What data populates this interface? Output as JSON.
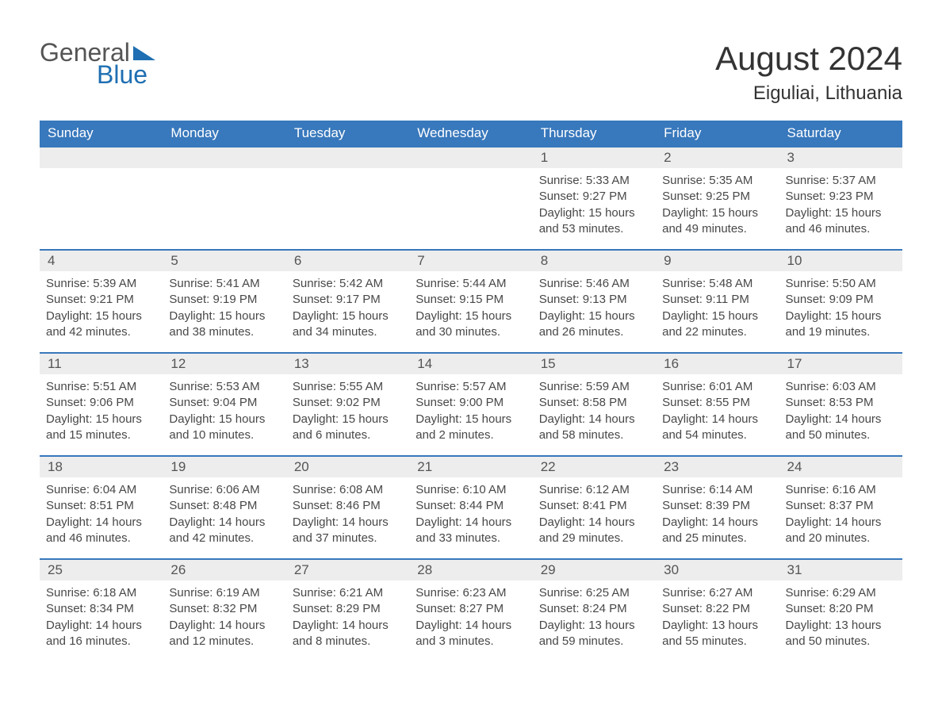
{
  "logo": {
    "word1": "General",
    "word2": "Blue"
  },
  "title": "August 2024",
  "location": "Eiguliai, Lithuania",
  "colors": {
    "header_bg": "#3878bc",
    "header_text": "#ffffff",
    "daynum_bg": "#ededed",
    "border": "#3878bc",
    "body_text": "#484848",
    "logo_accent": "#1f6fb2"
  },
  "weekdays": [
    "Sunday",
    "Monday",
    "Tuesday",
    "Wednesday",
    "Thursday",
    "Friday",
    "Saturday"
  ],
  "first_weekday_index": 4,
  "days": [
    {
      "n": 1,
      "sunrise": "5:33 AM",
      "sunset": "9:27 PM",
      "daylight": "15 hours and 53 minutes."
    },
    {
      "n": 2,
      "sunrise": "5:35 AM",
      "sunset": "9:25 PM",
      "daylight": "15 hours and 49 minutes."
    },
    {
      "n": 3,
      "sunrise": "5:37 AM",
      "sunset": "9:23 PM",
      "daylight": "15 hours and 46 minutes."
    },
    {
      "n": 4,
      "sunrise": "5:39 AM",
      "sunset": "9:21 PM",
      "daylight": "15 hours and 42 minutes."
    },
    {
      "n": 5,
      "sunrise": "5:41 AM",
      "sunset": "9:19 PM",
      "daylight": "15 hours and 38 minutes."
    },
    {
      "n": 6,
      "sunrise": "5:42 AM",
      "sunset": "9:17 PM",
      "daylight": "15 hours and 34 minutes."
    },
    {
      "n": 7,
      "sunrise": "5:44 AM",
      "sunset": "9:15 PM",
      "daylight": "15 hours and 30 minutes."
    },
    {
      "n": 8,
      "sunrise": "5:46 AM",
      "sunset": "9:13 PM",
      "daylight": "15 hours and 26 minutes."
    },
    {
      "n": 9,
      "sunrise": "5:48 AM",
      "sunset": "9:11 PM",
      "daylight": "15 hours and 22 minutes."
    },
    {
      "n": 10,
      "sunrise": "5:50 AM",
      "sunset": "9:09 PM",
      "daylight": "15 hours and 19 minutes."
    },
    {
      "n": 11,
      "sunrise": "5:51 AM",
      "sunset": "9:06 PM",
      "daylight": "15 hours and 15 minutes."
    },
    {
      "n": 12,
      "sunrise": "5:53 AM",
      "sunset": "9:04 PM",
      "daylight": "15 hours and 10 minutes."
    },
    {
      "n": 13,
      "sunrise": "5:55 AM",
      "sunset": "9:02 PM",
      "daylight": "15 hours and 6 minutes."
    },
    {
      "n": 14,
      "sunrise": "5:57 AM",
      "sunset": "9:00 PM",
      "daylight": "15 hours and 2 minutes."
    },
    {
      "n": 15,
      "sunrise": "5:59 AM",
      "sunset": "8:58 PM",
      "daylight": "14 hours and 58 minutes."
    },
    {
      "n": 16,
      "sunrise": "6:01 AM",
      "sunset": "8:55 PM",
      "daylight": "14 hours and 54 minutes."
    },
    {
      "n": 17,
      "sunrise": "6:03 AM",
      "sunset": "8:53 PM",
      "daylight": "14 hours and 50 minutes."
    },
    {
      "n": 18,
      "sunrise": "6:04 AM",
      "sunset": "8:51 PM",
      "daylight": "14 hours and 46 minutes."
    },
    {
      "n": 19,
      "sunrise": "6:06 AM",
      "sunset": "8:48 PM",
      "daylight": "14 hours and 42 minutes."
    },
    {
      "n": 20,
      "sunrise": "6:08 AM",
      "sunset": "8:46 PM",
      "daylight": "14 hours and 37 minutes."
    },
    {
      "n": 21,
      "sunrise": "6:10 AM",
      "sunset": "8:44 PM",
      "daylight": "14 hours and 33 minutes."
    },
    {
      "n": 22,
      "sunrise": "6:12 AM",
      "sunset": "8:41 PM",
      "daylight": "14 hours and 29 minutes."
    },
    {
      "n": 23,
      "sunrise": "6:14 AM",
      "sunset": "8:39 PM",
      "daylight": "14 hours and 25 minutes."
    },
    {
      "n": 24,
      "sunrise": "6:16 AM",
      "sunset": "8:37 PM",
      "daylight": "14 hours and 20 minutes."
    },
    {
      "n": 25,
      "sunrise": "6:18 AM",
      "sunset": "8:34 PM",
      "daylight": "14 hours and 16 minutes."
    },
    {
      "n": 26,
      "sunrise": "6:19 AM",
      "sunset": "8:32 PM",
      "daylight": "14 hours and 12 minutes."
    },
    {
      "n": 27,
      "sunrise": "6:21 AM",
      "sunset": "8:29 PM",
      "daylight": "14 hours and 8 minutes."
    },
    {
      "n": 28,
      "sunrise": "6:23 AM",
      "sunset": "8:27 PM",
      "daylight": "14 hours and 3 minutes."
    },
    {
      "n": 29,
      "sunrise": "6:25 AM",
      "sunset": "8:24 PM",
      "daylight": "13 hours and 59 minutes."
    },
    {
      "n": 30,
      "sunrise": "6:27 AM",
      "sunset": "8:22 PM",
      "daylight": "13 hours and 55 minutes."
    },
    {
      "n": 31,
      "sunrise": "6:29 AM",
      "sunset": "8:20 PM",
      "daylight": "13 hours and 50 minutes."
    }
  ],
  "labels": {
    "sunrise": "Sunrise:",
    "sunset": "Sunset:",
    "daylight": "Daylight:"
  }
}
